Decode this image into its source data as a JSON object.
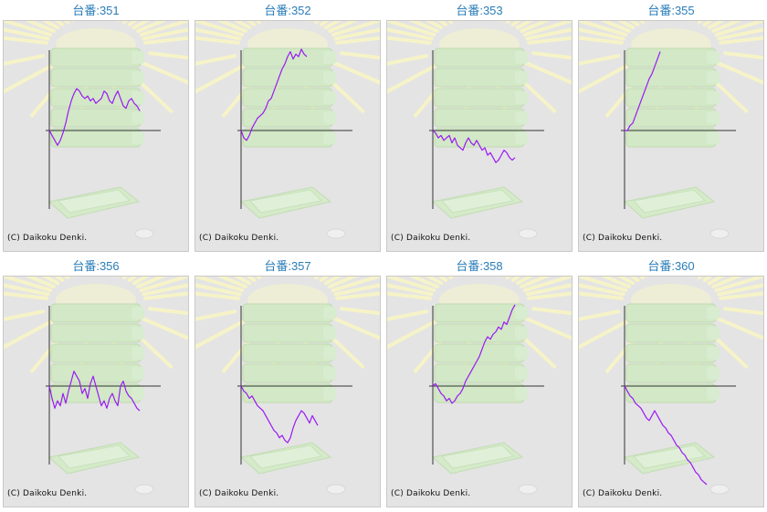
{
  "copyright": "(C) Daikoku Denki.",
  "title_prefix": "台番:",
  "line_color": "#9b19f5",
  "title_color": "#2a7db8",
  "chart_data": [
    {
      "type": "line",
      "machine": "351",
      "title": "台番:351",
      "x": [
        0,
        3,
        6,
        9,
        12,
        15,
        18,
        21,
        24,
        27,
        30,
        33,
        36,
        39,
        42,
        45,
        48,
        51,
        54,
        57,
        60,
        63,
        66,
        69,
        72,
        75,
        78,
        81,
        84,
        87,
        90,
        93,
        96,
        99
      ],
      "y": [
        0,
        -2,
        -4,
        -6,
        -4,
        -1,
        3,
        8,
        12,
        15,
        17,
        16,
        14,
        13,
        14,
        12,
        13,
        11,
        12,
        13,
        16,
        15,
        12,
        11,
        14,
        16,
        13,
        10,
        9,
        12,
        13,
        11,
        10,
        8
      ]
    },
    {
      "type": "line",
      "machine": "352",
      "title": "台番:352",
      "x": [
        0,
        3,
        6,
        9,
        12,
        15,
        18,
        21,
        24,
        27,
        30,
        33,
        36,
        39,
        42,
        45,
        48,
        51,
        54,
        57,
        60,
        63,
        66,
        69,
        72
      ],
      "y": [
        0,
        -3,
        -4,
        -2,
        1,
        3,
        5,
        6,
        7,
        9,
        12,
        13,
        16,
        19,
        22,
        25,
        27,
        30,
        32,
        29,
        31,
        30,
        33,
        31,
        30
      ]
    },
    {
      "type": "line",
      "machine": "353",
      "title": "台番:353",
      "x": [
        0,
        3,
        6,
        9,
        12,
        15,
        18,
        21,
        24,
        27,
        30,
        33,
        36,
        39,
        42,
        45,
        48,
        51,
        54,
        57,
        60,
        63,
        66,
        69,
        72,
        75,
        78,
        81,
        84,
        87,
        90
      ],
      "y": [
        0,
        -1,
        -3,
        -2,
        -4,
        -3,
        -2,
        -5,
        -3,
        -6,
        -7,
        -8,
        -5,
        -3,
        -5,
        -6,
        -4,
        -6,
        -8,
        -7,
        -10,
        -9,
        -11,
        -13,
        -12,
        -10,
        -8,
        -9,
        -11,
        -12,
        -11
      ]
    },
    {
      "type": "line",
      "machine": "355",
      "title": "台番:355",
      "x": [
        0,
        3,
        6,
        9,
        12,
        15,
        18,
        21,
        24,
        27,
        30,
        33,
        36,
        39
      ],
      "y": [
        0,
        0,
        2,
        3,
        6,
        9,
        12,
        15,
        18,
        21,
        23,
        26,
        29,
        32
      ]
    },
    {
      "type": "line",
      "machine": "356",
      "title": "台番:356",
      "x": [
        0,
        3,
        6,
        9,
        12,
        15,
        18,
        21,
        24,
        27,
        30,
        33,
        36,
        39,
        42,
        45,
        48,
        51,
        54,
        57,
        60,
        63,
        66,
        69,
        72,
        75,
        78,
        81,
        84,
        87,
        90,
        93,
        96,
        99
      ],
      "y": [
        0,
        -5,
        -9,
        -6,
        -8,
        -3,
        -7,
        -2,
        2,
        6,
        4,
        2,
        -3,
        -1,
        -5,
        1,
        4,
        0,
        -4,
        -8,
        -6,
        -9,
        -5,
        -3,
        -6,
        -8,
        0,
        2,
        -2,
        -4,
        -5,
        -7,
        -9,
        -10
      ]
    },
    {
      "type": "line",
      "machine": "357",
      "title": "台番:357",
      "x": [
        0,
        3,
        6,
        9,
        12,
        15,
        18,
        21,
        24,
        27,
        30,
        33,
        36,
        39,
        42,
        45,
        48,
        51,
        54,
        57,
        60,
        63,
        66,
        69,
        72,
        75,
        78,
        81,
        84
      ],
      "y": [
        0,
        -2,
        -3,
        -5,
        -4,
        -6,
        -8,
        -9,
        -10,
        -12,
        -14,
        -16,
        -18,
        -19,
        -21,
        -20,
        -22,
        -23,
        -21,
        -17,
        -14,
        -12,
        -10,
        -11,
        -13,
        -15,
        -12,
        -14,
        -16
      ]
    },
    {
      "type": "line",
      "machine": "358",
      "title": "台番:358",
      "x": [
        0,
        3,
        6,
        9,
        12,
        15,
        18,
        21,
        24,
        27,
        30,
        33,
        36,
        39,
        42,
        45,
        48,
        51,
        54,
        57,
        60,
        63,
        66,
        69,
        72,
        75,
        78,
        81,
        84,
        87,
        90
      ],
      "y": [
        0,
        1,
        -1,
        -3,
        -4,
        -6,
        -5,
        -7,
        -6,
        -4,
        -3,
        -1,
        2,
        4,
        6,
        8,
        10,
        12,
        15,
        18,
        20,
        19,
        21,
        22,
        24,
        23,
        26,
        25,
        28,
        31,
        33
      ]
    },
    {
      "type": "line",
      "machine": "360",
      "title": "台番:360",
      "x": [
        0,
        3,
        6,
        9,
        12,
        15,
        18,
        21,
        24,
        27,
        30,
        33,
        36,
        39,
        42,
        45,
        48,
        51,
        54,
        57,
        60,
        63,
        66,
        69,
        72,
        75,
        78,
        81,
        84,
        87,
        90
      ],
      "y": [
        0,
        -2,
        -4,
        -5,
        -7,
        -8,
        -9,
        -11,
        -13,
        -14,
        -12,
        -10,
        -12,
        -14,
        -16,
        -17,
        -19,
        -20,
        -22,
        -24,
        -25,
        -27,
        -28,
        -30,
        -31,
        -33,
        -35,
        -36,
        -38,
        -39,
        -40
      ]
    }
  ]
}
